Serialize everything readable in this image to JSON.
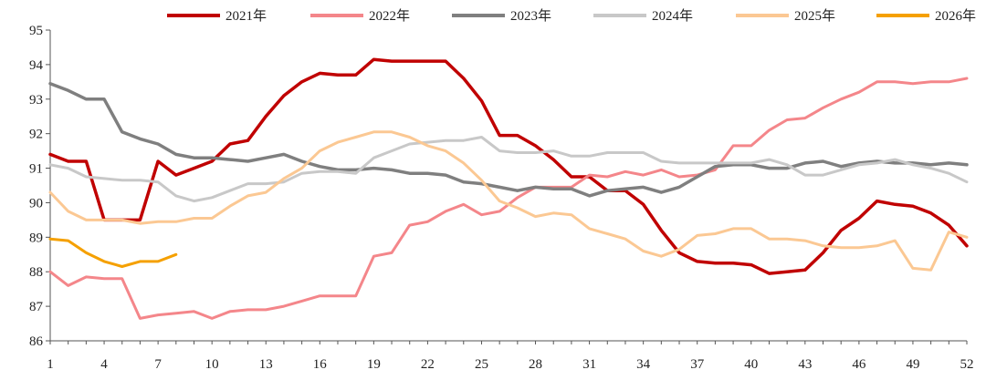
{
  "chart_data": {
    "type": "line",
    "title": "",
    "xlabel": "",
    "ylabel": "",
    "xlim": [
      1,
      52
    ],
    "ylim": [
      86,
      95
    ],
    "xticks": [
      1,
      4,
      7,
      10,
      13,
      16,
      19,
      22,
      25,
      28,
      31,
      34,
      37,
      40,
      43,
      46,
      49,
      52
    ],
    "yticks": [
      86,
      87,
      88,
      89,
      90,
      91,
      92,
      93,
      94,
      95
    ],
    "grid": false,
    "legend_position": "top",
    "series": [
      {
        "name": "2021年",
        "color": "#c00000",
        "width": 3.5,
        "values": [
          91.4,
          91.2,
          91.2,
          89.5,
          89.5,
          89.5,
          91.2,
          90.8,
          91.0,
          91.2,
          91.7,
          91.8,
          92.5,
          93.1,
          93.5,
          93.75,
          93.7,
          93.7,
          94.15,
          94.1,
          94.1,
          94.1,
          94.1,
          93.6,
          92.95,
          91.95,
          91.95,
          91.65,
          91.25,
          90.75,
          90.75,
          90.35,
          90.35,
          89.95,
          89.2,
          88.55,
          88.3,
          88.25,
          88.25,
          88.2,
          87.95,
          88.0,
          88.05,
          88.55,
          89.2,
          89.55,
          90.05,
          89.95,
          89.9,
          89.7,
          89.35,
          88.75
        ]
      },
      {
        "name": "2022年",
        "color": "#f4868a",
        "width": 3,
        "values": [
          88.0,
          87.6,
          87.85,
          87.8,
          87.8,
          86.65,
          86.75,
          86.8,
          86.85,
          86.65,
          86.85,
          86.9,
          86.9,
          87.0,
          87.15,
          87.3,
          87.3,
          87.3,
          88.45,
          88.55,
          89.35,
          89.45,
          89.75,
          89.95,
          89.65,
          89.75,
          90.15,
          90.45,
          90.45,
          90.45,
          90.8,
          90.75,
          90.9,
          90.8,
          90.95,
          90.75,
          90.8,
          90.95,
          91.65,
          91.65,
          92.1,
          92.4,
          92.45,
          92.75,
          93.0,
          93.2,
          93.5,
          93.5,
          93.45,
          93.5,
          93.5,
          93.6
        ]
      },
      {
        "name": "2023年",
        "color": "#7f7f7f",
        "width": 3.5,
        "values": [
          93.45,
          93.25,
          93.0,
          93.0,
          92.05,
          91.85,
          91.7,
          91.4,
          91.3,
          91.3,
          91.25,
          91.2,
          91.3,
          91.4,
          91.2,
          91.05,
          90.95,
          90.95,
          91.0,
          90.95,
          90.85,
          90.85,
          90.8,
          90.6,
          90.55,
          90.45,
          90.35,
          90.45,
          90.4,
          90.4,
          90.2,
          90.35,
          90.4,
          90.45,
          90.3,
          90.45,
          90.75,
          91.05,
          91.1,
          91.1,
          91.0,
          91.0,
          91.15,
          91.2,
          91.05,
          91.15,
          91.2,
          91.15,
          91.15,
          91.1,
          91.15,
          91.1
        ]
      },
      {
        "name": "2024年",
        "color": "#c8c8c8",
        "width": 3,
        "values": [
          91.1,
          91.0,
          90.75,
          90.7,
          90.65,
          90.65,
          90.6,
          90.2,
          90.05,
          90.15,
          90.35,
          90.55,
          90.55,
          90.6,
          90.85,
          90.9,
          90.9,
          90.85,
          91.3,
          91.5,
          91.7,
          91.75,
          91.8,
          91.8,
          91.9,
          91.5,
          91.45,
          91.45,
          91.5,
          91.35,
          91.35,
          91.45,
          91.45,
          91.45,
          91.2,
          91.15,
          91.15,
          91.15,
          91.15,
          91.15,
          91.25,
          91.1,
          90.8,
          90.8,
          90.95,
          91.1,
          91.15,
          91.25,
          91.1,
          91.0,
          90.85,
          90.6
        ]
      },
      {
        "name": "2025年",
        "color": "#fbc893",
        "width": 3,
        "values": [
          90.3,
          89.75,
          89.5,
          89.5,
          89.5,
          89.4,
          89.45,
          89.45,
          89.55,
          89.55,
          89.9,
          90.2,
          90.3,
          90.7,
          91.0,
          91.5,
          91.75,
          91.9,
          92.05,
          92.05,
          91.9,
          91.65,
          91.5,
          91.15,
          90.65,
          90.05,
          89.85,
          89.6,
          89.7,
          89.65,
          89.25,
          89.1,
          88.95,
          88.6,
          88.45,
          88.65,
          89.05,
          89.1,
          89.25,
          89.25,
          88.95,
          88.95,
          88.9,
          88.75,
          88.7,
          88.7,
          88.75,
          88.9,
          88.1,
          88.05,
          89.15,
          89.0
        ]
      },
      {
        "name": "2026年",
        "color": "#f5a000",
        "width": 3,
        "values": [
          88.95,
          88.9,
          88.55,
          88.3,
          88.15,
          88.3,
          88.3,
          88.5
        ]
      }
    ]
  }
}
